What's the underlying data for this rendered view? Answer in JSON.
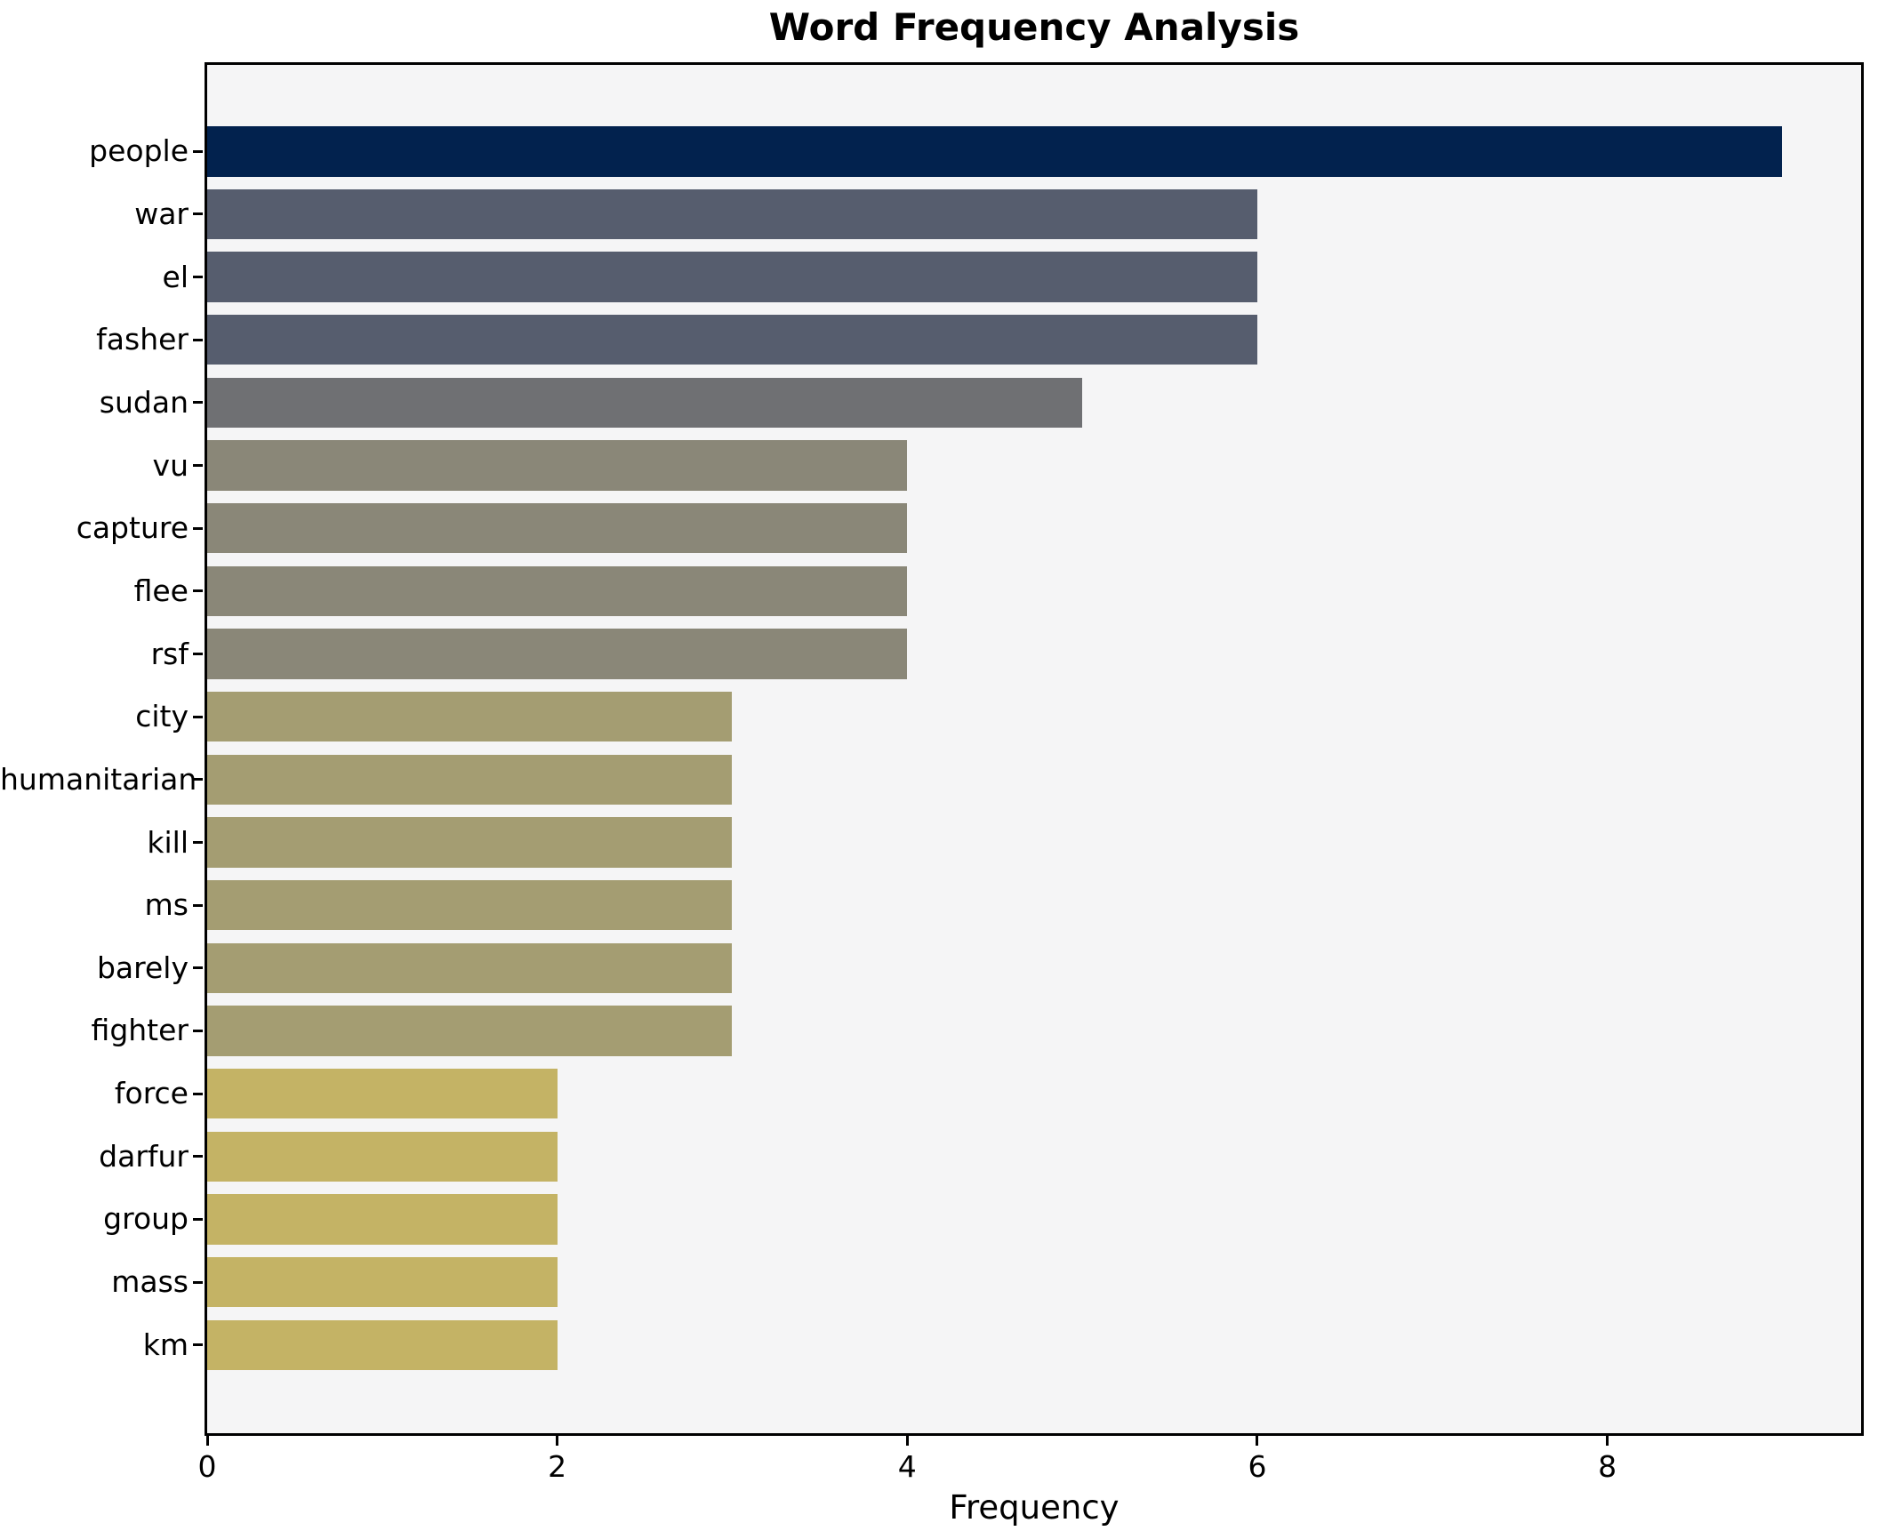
{
  "chart_data": {
    "type": "bar",
    "orientation": "horizontal",
    "title": "Word Frequency Analysis",
    "xlabel": "Frequency",
    "ylabel": "",
    "categories": [
      "people",
      "war",
      "el",
      "fasher",
      "sudan",
      "vu",
      "capture",
      "flee",
      "rsf",
      "city",
      "humanitarian",
      "kill",
      "ms",
      "barely",
      "fighter",
      "force",
      "darfur",
      "group",
      "mass",
      "km"
    ],
    "values": [
      9,
      6,
      6,
      6,
      5,
      4,
      4,
      4,
      4,
      3,
      3,
      3,
      3,
      3,
      3,
      2,
      2,
      2,
      2,
      2
    ],
    "bar_colors": [
      "#02224e",
      "#565d6e",
      "#565d6e",
      "#565d6e",
      "#6f7073",
      "#8a8778",
      "#8a8778",
      "#8a8778",
      "#8a8778",
      "#a49d72",
      "#a49d72",
      "#a49d72",
      "#a49d72",
      "#a49d72",
      "#a49d72",
      "#c4b365",
      "#c4b365",
      "#c4b365",
      "#c4b365",
      "#c4b365"
    ],
    "xlim": [
      0,
      9.45
    ],
    "xticks": [
      0,
      2,
      4,
      6,
      8
    ],
    "grid": false,
    "legend": null,
    "plot_bg": "#f5f5f6",
    "outer_bg": "#ffffff",
    "axis_color": "#000000",
    "text_color": "#000000"
  }
}
